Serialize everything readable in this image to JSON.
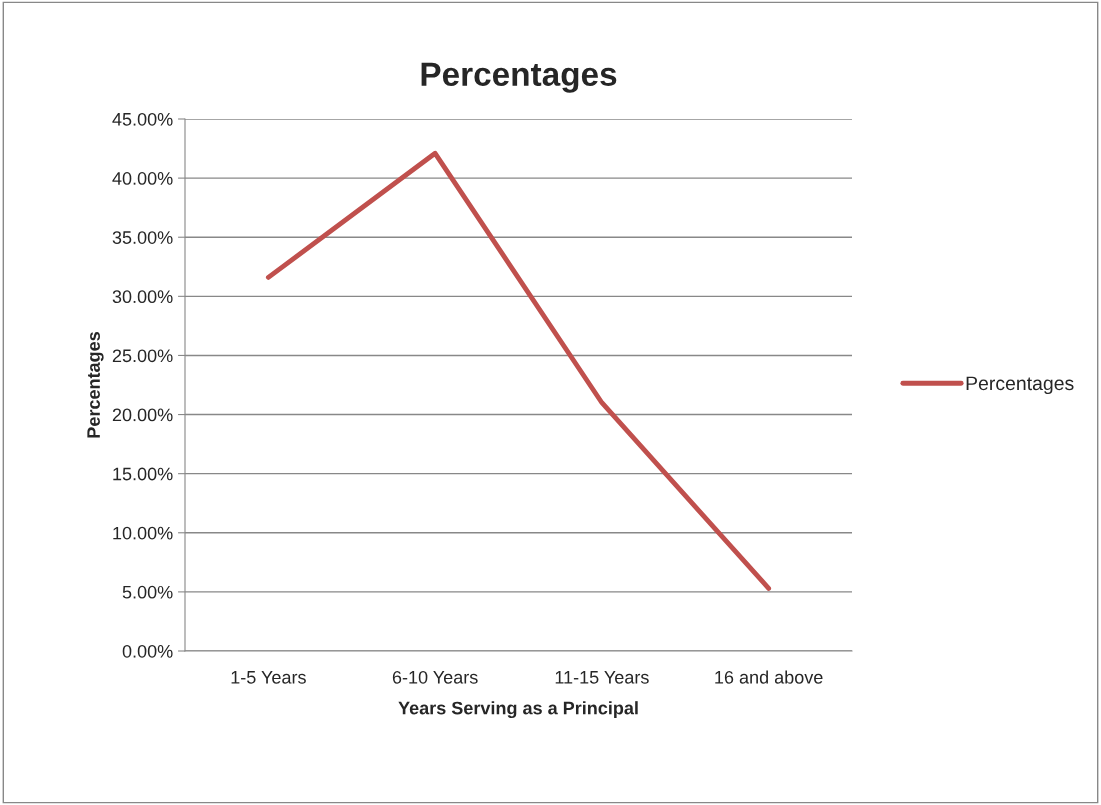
{
  "chart_data": {
    "type": "line",
    "title": "Percentages",
    "xlabel": "Years Serving as a Principal",
    "ylabel": "Percentages",
    "categories": [
      "1-5 Years",
      "6-10 Years",
      "11-15 Years",
      "16 and above"
    ],
    "series": [
      {
        "name": "Percentages",
        "color": "#c0504d",
        "values": [
          31.6,
          42.1,
          21.0,
          5.3
        ]
      }
    ],
    "ylim": [
      0,
      45
    ],
    "yticks": [
      {
        "value": 0,
        "label": "0.00%"
      },
      {
        "value": 5,
        "label": "5.00%"
      },
      {
        "value": 10,
        "label": "10.00%"
      },
      {
        "value": 15,
        "label": "15.00%"
      },
      {
        "value": 20,
        "label": "20.00%"
      },
      {
        "value": 25,
        "label": "25.00%"
      },
      {
        "value": 30,
        "label": "30.00%"
      },
      {
        "value": 35,
        "label": "35.00%"
      },
      {
        "value": 40,
        "label": "40.00%"
      },
      {
        "value": 45,
        "label": "45.00%"
      }
    ],
    "grid": "y",
    "legend": "right",
    "marker": "none",
    "line_style": "solid"
  }
}
